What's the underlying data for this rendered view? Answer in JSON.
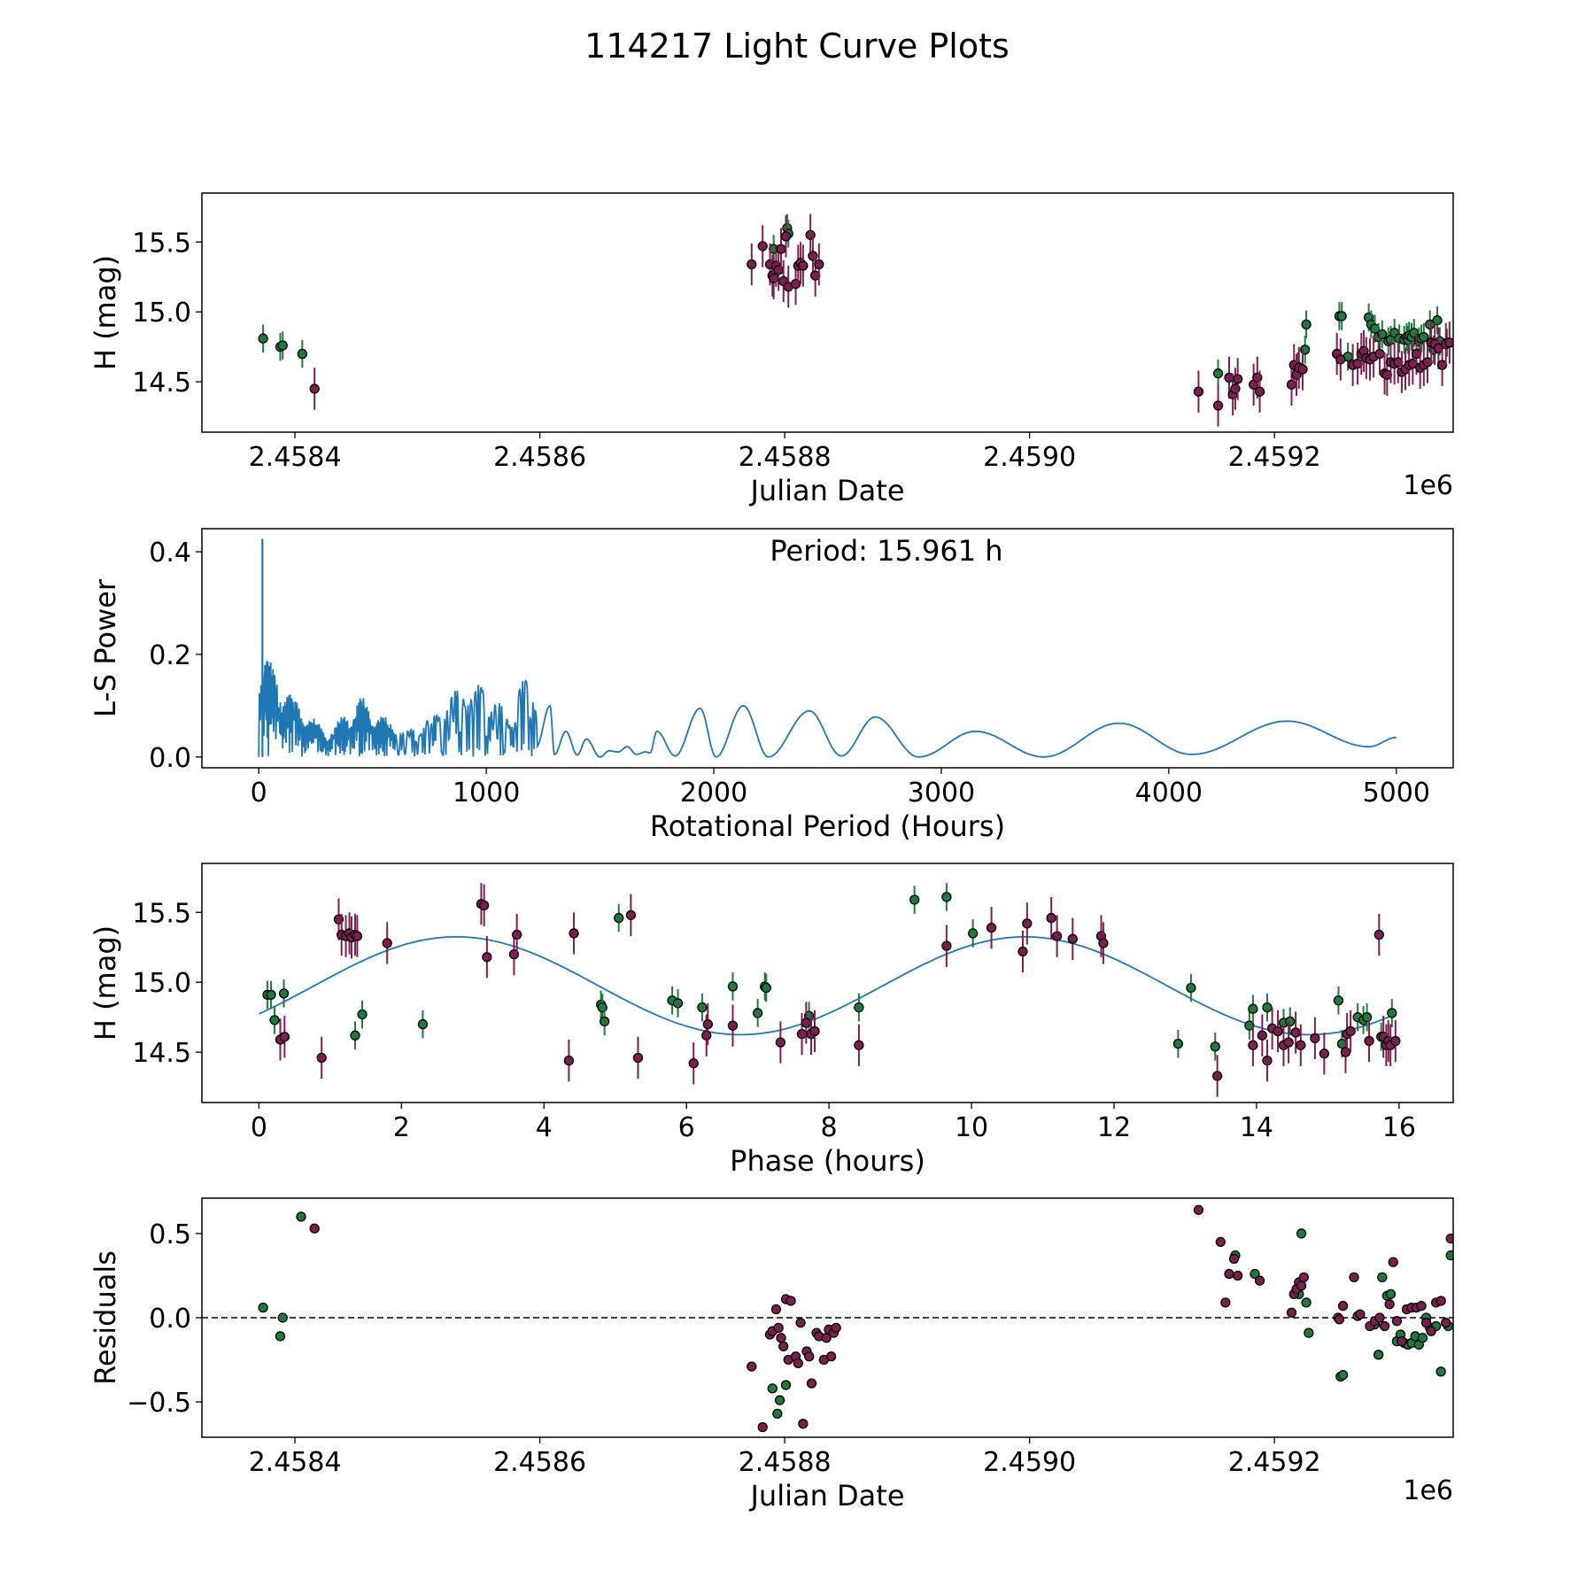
{
  "figure": {
    "title": "114217 Light Curve Plots",
    "colors": {
      "green": "#1f7a3c",
      "magenta": "#7a1f4f",
      "line": "#1f77b4",
      "axes": "#000000"
    }
  },
  "chart_data": [
    {
      "id": "lc",
      "type": "scatter",
      "title": "",
      "xlabel": "Julian Date",
      "ylabel": "H (mag)",
      "xlim": [
        2458324,
        2459346
      ],
      "ylim": [
        14.14,
        15.85
      ],
      "xticks": [
        2458400,
        2458600,
        2458800,
        2459000,
        2459200
      ],
      "xtick_labels": [
        "2.4584",
        "2.4586",
        "2.4588",
        "2.4590",
        "2.4592"
      ],
      "yticks": [
        14.5,
        15.0,
        15.5
      ],
      "ytick_labels": [
        "14.5",
        "15.0",
        "15.5"
      ],
      "offset_label": "1e6",
      "series": [
        {
          "name": "green band",
          "color": "green",
          "err": 0.1,
          "x": [
            2458374,
            2458388,
            2458390,
            2458406,
            2458791,
            2458802,
            2458803,
            2459154,
            2459219,
            2459223,
            2459225,
            2459226,
            2459253,
            2459255,
            2459260,
            2459277,
            2459279,
            2459282,
            2459285,
            2459288,
            2459293,
            2459295,
            2459298,
            2459302,
            2459306,
            2459308,
            2459309,
            2459310,
            2459312,
            2459314,
            2459318,
            2459320,
            2459322,
            2459327,
            2459330,
            2459333,
            2459335,
            2459341
          ],
          "y": [
            14.81,
            14.75,
            14.76,
            14.7,
            15.45,
            15.6,
            15.56,
            14.56,
            14.61,
            14.59,
            14.73,
            14.91,
            14.97,
            14.97,
            14.68,
            14.96,
            14.91,
            14.88,
            14.82,
            14.84,
            14.79,
            14.8,
            14.85,
            14.81,
            14.8,
            14.82,
            14.8,
            14.83,
            14.82,
            14.85,
            14.79,
            14.81,
            14.82,
            14.91,
            14.73,
            14.94,
            14.79,
            14.78
          ]
        },
        {
          "name": "magenta band",
          "color": "magenta",
          "err": 0.15,
          "x": [
            2458416,
            2458773,
            2458782,
            2458788,
            2458790,
            2458791,
            2458793,
            2458795,
            2458797,
            2458799,
            2458801,
            2458803,
            2458809,
            2458811,
            2458813,
            2458815,
            2458821,
            2458823,
            2458825,
            2458828,
            2459138,
            2459154,
            2459163,
            2459166,
            2459168,
            2459170,
            2459183,
            2459186,
            2459188,
            2459214,
            2459216,
            2459218,
            2459220,
            2459223,
            2459251,
            2459254,
            2459264,
            2459268,
            2459271,
            2459273,
            2459275,
            2459278,
            2459281,
            2459286,
            2459290,
            2459292,
            2459295,
            2459298,
            2459301,
            2459304,
            2459307,
            2459310,
            2459313,
            2459316,
            2459319,
            2459322,
            2459325,
            2459328,
            2459331,
            2459334,
            2459337,
            2459340,
            2459343
          ],
          "y": [
            14.45,
            15.34,
            15.47,
            15.34,
            15.26,
            15.24,
            15.33,
            15.3,
            15.45,
            15.22,
            15.54,
            15.18,
            15.2,
            15.33,
            15.35,
            15.33,
            15.55,
            15.4,
            15.26,
            15.34,
            14.43,
            14.33,
            14.53,
            14.41,
            14.45,
            14.52,
            14.48,
            14.53,
            14.43,
            14.48,
            14.62,
            14.55,
            14.6,
            14.59,
            14.7,
            14.66,
            14.62,
            14.63,
            14.7,
            14.72,
            14.67,
            14.66,
            14.68,
            14.7,
            14.56,
            14.55,
            14.64,
            14.63,
            14.64,
            14.57,
            14.59,
            14.62,
            14.63,
            14.7,
            14.6,
            14.62,
            14.64,
            14.78,
            14.77,
            14.74,
            14.62,
            14.77,
            14.78
          ]
        }
      ]
    },
    {
      "id": "ls",
      "type": "line",
      "title": "",
      "xlabel": "Rotational Period (Hours)",
      "ylabel": "L-S Power",
      "xlim": [
        -250,
        5250
      ],
      "ylim": [
        -0.021,
        0.445
      ],
      "xticks": [
        0,
        1000,
        2000,
        3000,
        4000,
        5000
      ],
      "xtick_labels": [
        "0",
        "1000",
        "2000",
        "3000",
        "4000",
        "5000"
      ],
      "yticks": [
        0.0,
        0.2,
        0.4
      ],
      "ytick_labels": [
        "0.0",
        "0.2",
        "0.4"
      ],
      "annotation": "Period: 15.961 h",
      "peak": {
        "x": 16,
        "y": 0.425
      },
      "envelope": {
        "x": [
          0,
          150,
          300,
          450,
          550,
          650,
          780,
          900,
          1000,
          1100,
          1150,
          1220
        ],
        "y": [
          0.22,
          0.12,
          0.05,
          0.12,
          0.08,
          0.05,
          0.09,
          0.15,
          0.14,
          0.08,
          0.15,
          0.15
        ]
      },
      "wide_peaks": {
        "x": [
          1280,
          1350,
          1440,
          1540,
          1620,
          1700,
          1750,
          1940,
          2130,
          2420,
          2710,
          3150,
          3780,
          4520,
          5000
        ],
        "y": [
          0.1,
          0.05,
          0.035,
          0.012,
          0.02,
          0.01,
          0.05,
          0.095,
          0.1,
          0.09,
          0.078,
          0.05,
          0.066,
          0.07,
          0.038
        ]
      },
      "valleys": {
        "x": [
          1300,
          1400,
          1500,
          1580,
          1660,
          1720,
          1830,
          2010,
          2240,
          2560,
          2900,
          3450,
          4100,
          4880
        ],
        "y": [
          0.005,
          0.004,
          0.0,
          0.01,
          0.005,
          0.008,
          0.002,
          0.0,
          0.0,
          0.002,
          0.0,
          0.0,
          0.005,
          0.02
        ]
      }
    },
    {
      "id": "phase",
      "type": "scatter",
      "title": "",
      "xlabel": "Phase (hours)",
      "ylabel": "H (mag)",
      "xlim": [
        -0.8,
        16.76
      ],
      "ylim": [
        14.14,
        15.85
      ],
      "xticks": [
        0,
        2,
        4,
        6,
        8,
        10,
        12,
        14,
        16
      ],
      "xtick_labels": [
        "0",
        "2",
        "4",
        "6",
        "8",
        "10",
        "12",
        "14",
        "16"
      ],
      "yticks": [
        14.5,
        15.0,
        15.5
      ],
      "ytick_labels": [
        "14.5",
        "15.0",
        "15.5"
      ],
      "fit": {
        "mean": 14.975,
        "amplitude": 0.35,
        "period": 7.98,
        "peak_phase": 2.77,
        "x_range": [
          0,
          15.96
        ]
      },
      "series": [
        {
          "name": "green band",
          "color": "green",
          "err": 0.1,
          "x": [
            0.12,
            0.17,
            0.22,
            0.35,
            1.35,
            1.45,
            2.3,
            4.8,
            4.82,
            4.85,
            5.05,
            5.8,
            5.88,
            6.22,
            6.65,
            7.0,
            7.1,
            7.12,
            7.72,
            8.42,
            9.2,
            9.65,
            10.02,
            13.08,
            12.9,
            13.42,
            13.9,
            13.95,
            14.15,
            14.38,
            14.47,
            15.15,
            15.2,
            15.42,
            15.5,
            15.55,
            15.75,
            15.9
          ],
          "y": [
            14.91,
            14.91,
            14.73,
            14.92,
            14.62,
            14.77,
            14.7,
            14.84,
            14.82,
            14.72,
            15.46,
            14.87,
            14.85,
            14.82,
            14.97,
            14.78,
            14.97,
            14.96,
            14.76,
            14.82,
            15.59,
            15.61,
            15.35,
            14.96,
            14.56,
            14.54,
            14.69,
            14.81,
            14.82,
            14.71,
            14.72,
            14.87,
            14.56,
            14.75,
            14.73,
            14.75,
            14.61,
            14.78
          ]
        },
        {
          "name": "magenta band",
          "color": "magenta",
          "err": 0.15,
          "x": [
            0.3,
            0.36,
            0.88,
            1.12,
            1.16,
            1.22,
            1.27,
            1.3,
            1.35,
            1.38,
            1.8,
            3.12,
            3.16,
            3.2,
            3.58,
            3.62,
            4.35,
            4.42,
            5.22,
            5.32,
            6.1,
            6.28,
            6.3,
            6.65,
            7.32,
            7.62,
            7.68,
            7.75,
            7.8,
            8.42,
            9.65,
            10.28,
            10.72,
            10.78,
            11.12,
            11.2,
            11.42,
            11.82,
            11.85,
            13.45,
            13.95,
            14.08,
            14.15,
            14.22,
            14.3,
            14.38,
            14.45,
            14.55,
            14.62,
            14.82,
            14.95,
            15.25,
            15.27,
            15.32,
            15.58,
            15.72,
            15.78,
            15.82,
            15.85,
            15.88,
            15.95
          ],
          "y": [
            14.59,
            14.61,
            14.46,
            15.45,
            15.34,
            15.33,
            15.35,
            15.32,
            15.34,
            15.33,
            15.28,
            15.56,
            15.55,
            15.18,
            15.2,
            15.34,
            14.44,
            15.35,
            15.48,
            14.46,
            14.42,
            14.62,
            14.7,
            14.69,
            14.57,
            14.63,
            14.71,
            14.63,
            14.65,
            14.55,
            15.26,
            15.39,
            15.22,
            15.42,
            15.46,
            15.33,
            15.31,
            15.33,
            15.28,
            14.33,
            14.55,
            14.62,
            14.44,
            14.67,
            14.65,
            14.55,
            14.57,
            14.64,
            14.55,
            14.6,
            14.49,
            14.5,
            14.63,
            14.65,
            14.58,
            15.34,
            14.61,
            14.55,
            14.58,
            14.55,
            14.58
          ]
        }
      ]
    },
    {
      "id": "res",
      "type": "scatter",
      "title": "",
      "xlabel": "Julian Date",
      "ylabel": "Residuals",
      "xlim": [
        2458324,
        2459346
      ],
      "ylim": [
        -0.71,
        0.71
      ],
      "xticks": [
        2458400,
        2458600,
        2458800,
        2459000,
        2459200
      ],
      "xtick_labels": [
        "2.4584",
        "2.4586",
        "2.4588",
        "2.4590",
        "2.4592"
      ],
      "yticks": [
        -0.5,
        0.0,
        0.5
      ],
      "ytick_labels": [
        "−0.5",
        "0.0",
        "0.5"
      ],
      "offset_label": "1e6",
      "zero_line": true,
      "series": [
        {
          "name": "green band",
          "color": "green",
          "x": [
            2458374,
            2458388,
            2458390,
            2458405,
            2458790,
            2458794,
            2458796,
            2458801,
            2459168,
            2459184,
            2459220,
            2459222,
            2459226,
            2459228,
            2459252,
            2459254,
            2459256,
            2459268,
            2459282,
            2459285,
            2459288,
            2459292,
            2459295,
            2459300,
            2459303,
            2459306,
            2459309,
            2459312,
            2459315,
            2459318,
            2459321,
            2459324,
            2459327,
            2459332,
            2459336,
            2459342,
            2459344
          ],
          "y": [
            0.06,
            -0.11,
            0.0,
            0.6,
            -0.42,
            -0.57,
            -0.49,
            -0.4,
            0.37,
            0.26,
            0.14,
            0.5,
            0.09,
            -0.09,
            0.0,
            -0.35,
            -0.34,
            0.01,
            -0.04,
            -0.22,
            0.24,
            0.13,
            0.14,
            -0.14,
            -0.1,
            -0.15,
            -0.16,
            -0.15,
            -0.11,
            -0.16,
            -0.12,
            0.0,
            -0.06,
            -0.05,
            -0.32,
            -0.05,
            0.37
          ]
        },
        {
          "name": "magenta band",
          "color": "magenta",
          "x": [
            2458416,
            2458773,
            2458782,
            2458788,
            2458790,
            2458793,
            2458795,
            2458797,
            2458799,
            2458801,
            2458803,
            2458805,
            2458809,
            2458811,
            2458813,
            2458815,
            2458818,
            2458820,
            2458822,
            2458826,
            2458828,
            2458832,
            2458834,
            2458836,
            2458838,
            2458840,
            2458842,
            2459138,
            2459156,
            2459160,
            2459163,
            2459167,
            2459170,
            2459188,
            2459214,
            2459216,
            2459218,
            2459220,
            2459222,
            2459224,
            2459253,
            2459256,
            2459265,
            2459270,
            2459278,
            2459282,
            2459286,
            2459290,
            2459294,
            2459297,
            2459300,
            2459304,
            2459308,
            2459312,
            2459316,
            2459320,
            2459324,
            2459328,
            2459332,
            2459336,
            2459340,
            2459344
          ],
          "y": [
            0.53,
            -0.29,
            -0.65,
            -0.1,
            -0.08,
            0.05,
            -0.06,
            -0.12,
            -0.17,
            0.11,
            -0.25,
            0.1,
            -0.23,
            -0.27,
            -0.03,
            -0.63,
            -0.2,
            -0.23,
            -0.39,
            -0.09,
            -0.11,
            -0.25,
            -0.12,
            -0.07,
            -0.23,
            -0.09,
            -0.06,
            0.64,
            0.45,
            0.09,
            0.26,
            0.35,
            0.25,
            0.22,
            0.03,
            0.14,
            0.17,
            0.21,
            0.19,
            0.24,
            -0.01,
            0.07,
            0.24,
            0.02,
            -0.05,
            -0.02,
            0.0,
            -0.05,
            0.08,
            0.33,
            -0.02,
            -0.14,
            0.05,
            0.06,
            0.06,
            0.07,
            -0.03,
            -0.08,
            0.09,
            0.1,
            -0.03,
            0.47
          ]
        }
      ]
    }
  ]
}
